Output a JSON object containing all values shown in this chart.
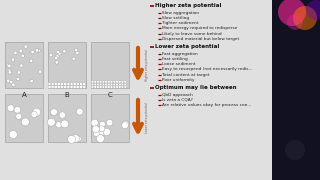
{
  "bg_color": "#e0e0e0",
  "box_color": "#d0d0d0",
  "text_panel_bg": "#e8e8e8",
  "arrow_color": "#cc5500",
  "text_color": "#111111",
  "bullet_color": "#8b0000",
  "header_color": "#111111",
  "section_headers": [
    "Higher zeta potential",
    "Lower zeta potential",
    "Optimum may lie between"
  ],
  "higher_zeta_bullets": [
    "Slow aggregation",
    "Slow settling",
    "Tighter sediment",
    "More energy required to redisperse",
    "Likely to leave some behind",
    "Dispersed material but below target"
  ],
  "lower_zeta_bullets": [
    "Fast aggregation",
    "Fast settling",
    "Loose sediment",
    "Easy to resuspend (not necessarily redis...",
    "Total content at target",
    "Poor uniformity"
  ],
  "optimum_bullets": [
    "QbD approach",
    "Is zeta a CQA?",
    "Are relative values okay for process con..."
  ],
  "labels_abc": [
    "A",
    "B",
    "C"
  ],
  "right_panel_bg": "#111122",
  "vertical_label_higher": "Higher zeta potential",
  "vertical_label_lower": "Lower zeta potential"
}
